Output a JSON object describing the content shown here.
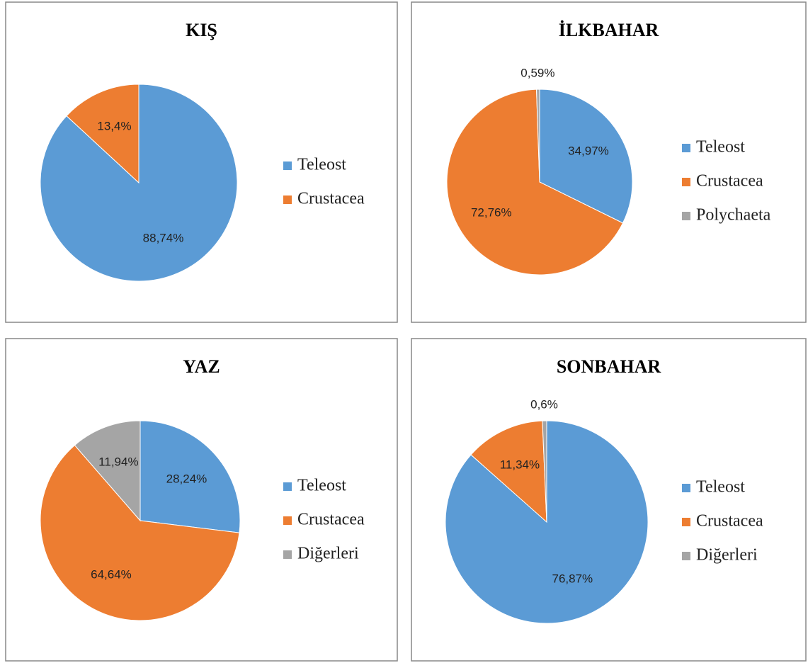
{
  "chart_data": [
    {
      "type": "pie",
      "title": "KIŞ",
      "categories": [
        "Teleost",
        "Crustacea"
      ],
      "values": [
        88.74,
        13.4
      ],
      "value_labels": [
        "88,74%",
        "13,4%"
      ],
      "colors": [
        "#5b9bd5",
        "#ed7d31"
      ]
    },
    {
      "type": "pie",
      "title": "İLKBAHAR",
      "categories": [
        "Teleost",
        "Crustacea",
        "Polychaeta"
      ],
      "values": [
        34.97,
        72.76,
        0.59
      ],
      "value_labels": [
        "34,97%",
        "72,76%",
        "0,59%"
      ],
      "colors": [
        "#5b9bd5",
        "#ed7d31",
        "#a5a5a5"
      ]
    },
    {
      "type": "pie",
      "title": "YAZ",
      "categories": [
        "Teleost",
        "Crustacea",
        "Diğerleri"
      ],
      "values": [
        28.24,
        64.64,
        11.94
      ],
      "value_labels": [
        "28,24%",
        "64,64%",
        "11,94%"
      ],
      "colors": [
        "#5b9bd5",
        "#ed7d31",
        "#a5a5a5"
      ]
    },
    {
      "type": "pie",
      "title": "SONBAHAR",
      "categories": [
        "Teleost",
        "Crustacea",
        "Diğerleri"
      ],
      "values": [
        76.87,
        11.34,
        0.6
      ],
      "value_labels": [
        "76,87%",
        "11,34%",
        "0,6%"
      ],
      "colors": [
        "#5b9bd5",
        "#ed7d31",
        "#a5a5a5"
      ]
    }
  ]
}
